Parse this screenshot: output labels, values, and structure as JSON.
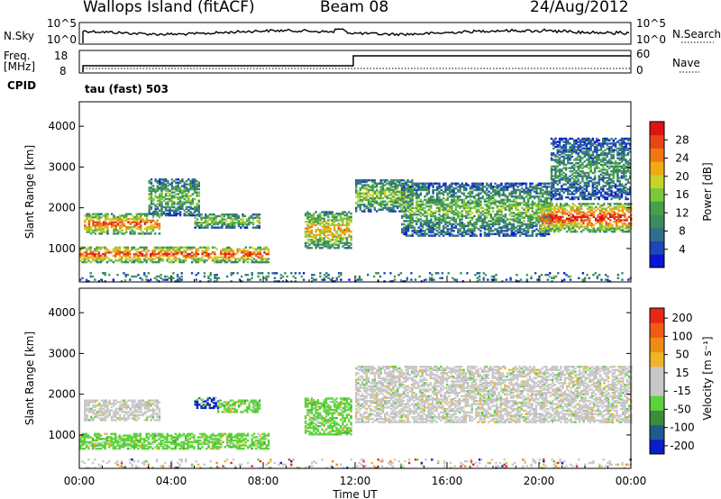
{
  "header": {
    "station": "Wallops Island (fitACF)",
    "beam": "Beam 08",
    "date": "24/Aug/2012"
  },
  "top_panels": {
    "nsky_label": "N.Sky",
    "nsky_ticks": [
      "10^5",
      "10^0"
    ],
    "nsearch_label": "N.Search",
    "nsearch_ticks": [
      "10^5",
      "10^0"
    ],
    "freq_label": "Freq.",
    "freq_unit": "[MHz]",
    "freq_ticks": [
      "18",
      "8"
    ],
    "nave_label": "Nave",
    "nave_ticks": [
      "60",
      "0"
    ],
    "cpid_label": "CPID",
    "cpid_value": "tau (fast) 503"
  },
  "chart_data": [
    {
      "type": "heatmap",
      "name": "power",
      "ylabel": "Slant Range [km]",
      "ylim": [
        180,
        4600
      ],
      "yticks": [
        "1000",
        "2000",
        "3000",
        "4000"
      ],
      "xlim": [
        0,
        24
      ],
      "colorbar": {
        "label": "Power [dB]",
        "ticks": [
          "4",
          "8",
          "12",
          "16",
          "20",
          "24",
          "28"
        ],
        "colors": [
          "#0a14d2",
          "#1e46b4",
          "#2f6e8c",
          "#3d8a5e",
          "#46a048",
          "#7ac83c",
          "#c8d228",
          "#f0aa14",
          "#f07814",
          "#e64614",
          "#dc1414"
        ]
      },
      "echo_regions": [
        {
          "t0": 0.0,
          "t1": 8.2,
          "r0": 650,
          "r1": 1050,
          "level": 0.75
        },
        {
          "t0": 0.2,
          "t1": 3.5,
          "r0": 1350,
          "r1": 1850,
          "level": 0.7
        },
        {
          "t0": 3.0,
          "t1": 5.2,
          "r0": 1800,
          "r1": 2700,
          "level": 0.4
        },
        {
          "t0": 5.0,
          "t1": 7.8,
          "r0": 1500,
          "r1": 1850,
          "level": 0.45
        },
        {
          "t0": 9.8,
          "t1": 11.8,
          "r0": 1000,
          "r1": 1900,
          "level": 0.6
        },
        {
          "t0": 12.0,
          "t1": 14.5,
          "r0": 1900,
          "r1": 2700,
          "level": 0.45
        },
        {
          "t0": 14.0,
          "t1": 20.5,
          "r0": 1300,
          "r1": 2600,
          "level": 0.4
        },
        {
          "t0": 20.0,
          "t1": 24.0,
          "r0": 1400,
          "r1": 2100,
          "level": 0.8
        },
        {
          "t0": 20.5,
          "t1": 24.0,
          "r0": 2200,
          "r1": 3700,
          "level": 0.3
        },
        {
          "t0": 0.0,
          "t1": 24.0,
          "r0": 180,
          "r1": 420,
          "level": 0.3
        }
      ]
    },
    {
      "type": "heatmap",
      "name": "velocity",
      "ylabel": "Slant Range [km]",
      "ylim": [
        180,
        4600
      ],
      "yticks": [
        "1000",
        "2000",
        "3000",
        "4000"
      ],
      "xlim": [
        0,
        24
      ],
      "xlabel": "Time UT",
      "xticks": [
        "00:00",
        "04:00",
        "08:00",
        "12:00",
        "16:00",
        "20:00",
        "00:00"
      ],
      "colorbar": {
        "label": "Velocity [m s⁻¹]",
        "ticks": [
          "200",
          "100",
          "50",
          "15",
          "-15",
          "-50",
          "-100",
          "-200"
        ],
        "colors": [
          "#0a1ec8",
          "#1e5a8c",
          "#3c8c3c",
          "#5ad23c",
          "#c8c8c8",
          "#c8c8c8",
          "#f0b428",
          "#f08c14",
          "#f05a14",
          "#e62814"
        ]
      },
      "echo_regions": [
        {
          "t0": 0.0,
          "t1": 8.2,
          "r0": 650,
          "r1": 1050,
          "dominant": "green"
        },
        {
          "t0": 0.2,
          "t1": 3.5,
          "r0": 1350,
          "r1": 1850,
          "dominant": "gray"
        },
        {
          "t0": 5.0,
          "t1": 6.0,
          "r0": 1650,
          "r1": 1900,
          "dominant": "blue"
        },
        {
          "t0": 6.0,
          "t1": 7.8,
          "r0": 1550,
          "r1": 1850,
          "dominant": "green"
        },
        {
          "t0": 9.8,
          "t1": 11.8,
          "r0": 1000,
          "r1": 1900,
          "dominant": "green"
        },
        {
          "t0": 12.0,
          "t1": 24.0,
          "r0": 1300,
          "r1": 2700,
          "dominant": "gray"
        },
        {
          "t0": 0.0,
          "t1": 24.0,
          "r0": 180,
          "r1": 420,
          "dominant": "mixed"
        }
      ]
    }
  ]
}
